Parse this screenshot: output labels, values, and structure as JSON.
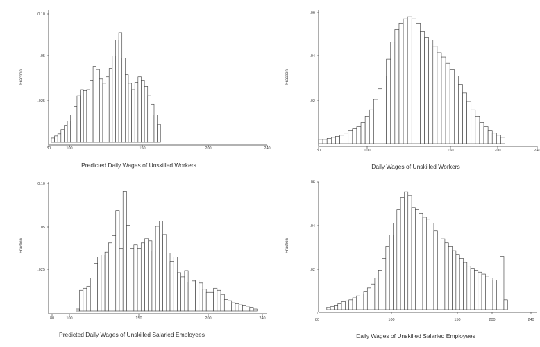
{
  "chart_data": [
    {
      "type": "bar",
      "xlabel": "Predicted Daily Wages of Unskilled Workers",
      "ylabel": "Fraction",
      "xlim": [
        80,
        240
      ],
      "x_ticks": [
        "80",
        "100",
        "150",
        "200",
        "240"
      ],
      "ylim": [
        0,
        0.125
      ],
      "y_ticks": [
        "0.10",
        ".05",
        ".025"
      ],
      "bin_start": 82,
      "bin_width": 2.35,
      "values": [
        0.004,
        0.006,
        0.008,
        0.012,
        0.016,
        0.02,
        0.026,
        0.034,
        0.044,
        0.05,
        0.049,
        0.05,
        0.059,
        0.072,
        0.069,
        0.06,
        0.056,
        0.062,
        0.07,
        0.082,
        0.097,
        0.104,
        0.08,
        0.064,
        0.056,
        0.05,
        0.057,
        0.062,
        0.059,
        0.053,
        0.044,
        0.036,
        0.026,
        0.017
      ]
    },
    {
      "type": "bar",
      "xlabel": "Daily Wages of Unskilled Workers",
      "ylabel": "Fraction",
      "xlim": [
        80,
        240
      ],
      "x_ticks": [
        "80",
        "100",
        "150",
        "200",
        "240"
      ],
      "ylim": [
        0,
        0.063
      ],
      "y_ticks": [
        ".06",
        ".04",
        ".02"
      ],
      "bin_start": 80,
      "bin_width": 3.1,
      "values": [
        0.002,
        0.002,
        0.0025,
        0.003,
        0.0035,
        0.004,
        0.005,
        0.006,
        0.007,
        0.008,
        0.01,
        0.013,
        0.016,
        0.021,
        0.026,
        0.032,
        0.04,
        0.048,
        0.054,
        0.057,
        0.059,
        0.06,
        0.059,
        0.057,
        0.053,
        0.05,
        0.049,
        0.046,
        0.043,
        0.041,
        0.038,
        0.035,
        0.032,
        0.028,
        0.024,
        0.02,
        0.016,
        0.013,
        0.01,
        0.008,
        0.006,
        0.005,
        0.004,
        0.003
      ]
    },
    {
      "type": "bar",
      "xlabel": "Predicted Daily Wages of Unskilled Salaried Employees",
      "ylabel": "Fraction",
      "xlim": [
        80,
        240
      ],
      "x_ticks": [
        "80",
        "100",
        "150",
        "200",
        "240"
      ],
      "ylim": [
        0,
        0.125
      ],
      "y_ticks": [
        "0.10",
        ".05",
        ".025"
      ],
      "bin_start": 100,
      "bin_width": 2.65,
      "values": [
        0.002,
        0.02,
        0.022,
        0.024,
        0.032,
        0.046,
        0.052,
        0.054,
        0.057,
        0.066,
        0.073,
        0.097,
        0.06,
        0.116,
        0.083,
        0.06,
        0.064,
        0.06,
        0.066,
        0.07,
        0.068,
        0.058,
        0.082,
        0.087,
        0.074,
        0.056,
        0.048,
        0.052,
        0.037,
        0.033,
        0.039,
        0.028,
        0.029,
        0.03,
        0.027,
        0.021,
        0.018,
        0.018,
        0.022,
        0.02,
        0.016,
        0.011,
        0.01,
        0.008,
        0.007,
        0.006,
        0.005,
        0.004,
        0.003,
        0.002
      ]
    },
    {
      "type": "bar",
      "xlabel": "Daily Wages of Unskilled Salaried Employees",
      "ylabel": "Fraction",
      "xlim": [
        80,
        240
      ],
      "x_ticks": [
        "80",
        "100",
        "150",
        "200",
        "240"
      ],
      "ylim": [
        0,
        0.065
      ],
      "y_ticks": [
        ".06",
        ".04",
        ".02"
      ],
      "bin_start": 86,
      "bin_width": 2.7,
      "values": [
        0.001,
        0.0015,
        0.002,
        0.003,
        0.004,
        0.0045,
        0.005,
        0.006,
        0.007,
        0.008,
        0.009,
        0.011,
        0.013,
        0.016,
        0.02,
        0.026,
        0.032,
        0.038,
        0.044,
        0.051,
        0.057,
        0.06,
        0.058,
        0.052,
        0.051,
        0.049,
        0.047,
        0.046,
        0.044,
        0.04,
        0.038,
        0.036,
        0.034,
        0.032,
        0.03,
        0.028,
        0.026,
        0.024,
        0.022,
        0.021,
        0.02,
        0.019,
        0.018,
        0.017,
        0.016,
        0.015,
        0.014,
        0.027,
        0.005
      ]
    }
  ]
}
